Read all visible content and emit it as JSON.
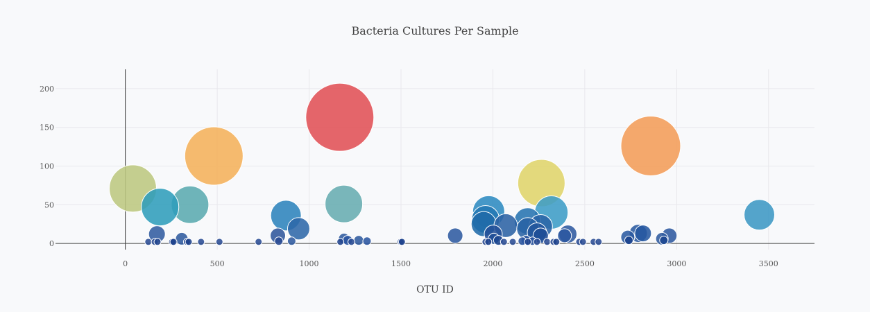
{
  "chart_data": {
    "type": "scatter",
    "title": "Bacteria Cultures Per Sample",
    "xlabel": "OTU ID",
    "ylabel": "",
    "xlim": [
      -380,
      3750
    ],
    "ylim": [
      -8,
      225
    ],
    "xticks": [
      0,
      500,
      1000,
      1500,
      2000,
      2500,
      3000,
      3500
    ],
    "yticks": [
      0,
      50,
      100,
      150,
      200
    ],
    "grid": true,
    "points": [
      {
        "x": 1167,
        "y": 163,
        "r": 49,
        "color": "#e05055"
      },
      {
        "x": 482,
        "y": 113,
        "r": 42,
        "color": "#f4b05a"
      },
      {
        "x": 2859,
        "y": 126,
        "r": 43,
        "color": "#f29c58"
      },
      {
        "x": 2264,
        "y": 78,
        "r": 34,
        "color": "#dfd46a"
      },
      {
        "x": 41,
        "y": 71,
        "r": 34,
        "color": "#bcc77f"
      },
      {
        "x": 352,
        "y": 50,
        "r": 27,
        "color": "#5aaaaf"
      },
      {
        "x": 1189,
        "y": 51,
        "r": 27,
        "color": "#67acb0"
      },
      {
        "x": 189,
        "y": 47,
        "r": 27,
        "color": "#2f9dbb"
      },
      {
        "x": 2318,
        "y": 40,
        "r": 24,
        "color": "#3c9cc6"
      },
      {
        "x": 3450,
        "y": 37,
        "r": 22,
        "color": "#3c97c4"
      },
      {
        "x": 874,
        "y": 36,
        "r": 22,
        "color": "#2c83bc"
      },
      {
        "x": 1977,
        "y": 41,
        "r": 23,
        "color": "#2c8ac0"
      },
      {
        "x": 1960,
        "y": 31,
        "r": 20,
        "color": "#2477b3"
      },
      {
        "x": 2188,
        "y": 29,
        "r": 19,
        "color": "#2673b0"
      },
      {
        "x": 1950,
        "y": 25,
        "r": 18,
        "color": "#1f6aa9"
      },
      {
        "x": 2070,
        "y": 23,
        "r": 17,
        "color": "#2b62a4"
      },
      {
        "x": 2260,
        "y": 22,
        "r": 17,
        "color": "#2a64a6"
      },
      {
        "x": 943,
        "y": 19,
        "r": 16,
        "color": "#2d68a8"
      },
      {
        "x": 2190,
        "y": 19,
        "r": 16,
        "color": "#2862a4"
      },
      {
        "x": 2240,
        "y": 14,
        "r": 14,
        "color": "#23569c"
      },
      {
        "x": 2408,
        "y": 12,
        "r": 13,
        "color": "#2e599f"
      },
      {
        "x": 2002,
        "y": 12,
        "r": 13,
        "color": "#245198"
      },
      {
        "x": 2791,
        "y": 13,
        "r": 13,
        "color": "#2a5aa0"
      },
      {
        "x": 2817,
        "y": 13,
        "r": 12,
        "color": "#2558a0"
      },
      {
        "x": 172,
        "y": 12,
        "r": 12,
        "color": "#315ca0"
      },
      {
        "x": 2960,
        "y": 10,
        "r": 11,
        "color": "#2e599f"
      },
      {
        "x": 1795,
        "y": 10,
        "r": 11,
        "color": "#2d5aa0"
      },
      {
        "x": 830,
        "y": 10,
        "r": 11,
        "color": "#2f579c"
      },
      {
        "x": 2260,
        "y": 10,
        "r": 11,
        "color": "#1f4d96"
      },
      {
        "x": 2390,
        "y": 10,
        "r": 10,
        "color": "#2c58a0"
      },
      {
        "x": 2734,
        "y": 8,
        "r": 10,
        "color": "#2b5aa0"
      },
      {
        "x": 2920,
        "y": 6,
        "r": 9,
        "color": "#2f5a9e"
      },
      {
        "x": 307,
        "y": 6,
        "r": 9,
        "color": "#2f5a9e"
      },
      {
        "x": 2005,
        "y": 6,
        "r": 8,
        "color": "#1f4d96"
      },
      {
        "x": 1190,
        "y": 6,
        "r": 8,
        "color": "#2f5a9e"
      },
      {
        "x": 1270,
        "y": 4,
        "r": 7,
        "color": "#2f5a9e"
      },
      {
        "x": 1210,
        "y": 4,
        "r": 7,
        "color": "#2a55a0"
      },
      {
        "x": 2030,
        "y": 4,
        "r": 7,
        "color": "#1d478f"
      },
      {
        "x": 2180,
        "y": 4,
        "r": 7,
        "color": "#24509a"
      },
      {
        "x": 2930,
        "y": 4,
        "r": 6,
        "color": "#1d478f"
      },
      {
        "x": 2740,
        "y": 4,
        "r": 6,
        "color": "#1a428c"
      },
      {
        "x": 835,
        "y": 3,
        "r": 6,
        "color": "#2a4c94"
      },
      {
        "x": 905,
        "y": 3,
        "r": 6,
        "color": "#2f5a9e"
      },
      {
        "x": 1315,
        "y": 3,
        "r": 6,
        "color": "#2a55a0"
      },
      {
        "x": 2160,
        "y": 3,
        "r": 6,
        "color": "#2a55a0"
      },
      {
        "x": 2215,
        "y": 3,
        "r": 6,
        "color": "#2a55a0"
      },
      {
        "x": 125,
        "y": 2,
        "r": 5,
        "color": "#2a4c94"
      },
      {
        "x": 160,
        "y": 2,
        "r": 5,
        "color": "#2a4c94"
      },
      {
        "x": 175,
        "y": 2,
        "r": 5,
        "color": "#23478f"
      },
      {
        "x": 255,
        "y": 2,
        "r": 5,
        "color": "#23478f"
      },
      {
        "x": 262,
        "y": 2,
        "r": 5,
        "color": "#1e428c"
      },
      {
        "x": 335,
        "y": 2,
        "r": 5,
        "color": "#23478f"
      },
      {
        "x": 345,
        "y": 2,
        "r": 5,
        "color": "#1e428c"
      },
      {
        "x": 412,
        "y": 2,
        "r": 5,
        "color": "#2a4c94"
      },
      {
        "x": 512,
        "y": 2,
        "r": 5,
        "color": "#2a4c94"
      },
      {
        "x": 725,
        "y": 2,
        "r": 5,
        "color": "#2a4c94"
      },
      {
        "x": 1170,
        "y": 2,
        "r": 5,
        "color": "#23478f"
      },
      {
        "x": 1230,
        "y": 2,
        "r": 5,
        "color": "#2a4c94"
      },
      {
        "x": 1498,
        "y": 2,
        "r": 5,
        "color": "#1e428c"
      },
      {
        "x": 1505,
        "y": 2,
        "r": 5,
        "color": "#1e428c"
      },
      {
        "x": 1960,
        "y": 2,
        "r": 5,
        "color": "#2a4c94"
      },
      {
        "x": 1975,
        "y": 2,
        "r": 5,
        "color": "#1e428c"
      },
      {
        "x": 2060,
        "y": 2,
        "r": 5,
        "color": "#2a4c94"
      },
      {
        "x": 2108,
        "y": 2,
        "r": 5,
        "color": "#2a4c94"
      },
      {
        "x": 2190,
        "y": 2,
        "r": 5,
        "color": "#1e428c"
      },
      {
        "x": 2240,
        "y": 2,
        "r": 5,
        "color": "#2a4c94"
      },
      {
        "x": 2295,
        "y": 2,
        "r": 5,
        "color": "#2a4c94"
      },
      {
        "x": 2330,
        "y": 2,
        "r": 5,
        "color": "#2a4c94"
      },
      {
        "x": 2345,
        "y": 2,
        "r": 5,
        "color": "#1e428c"
      },
      {
        "x": 2470,
        "y": 2,
        "r": 5,
        "color": "#2a4c94"
      },
      {
        "x": 2490,
        "y": 2,
        "r": 5,
        "color": "#2a4c94"
      },
      {
        "x": 2548,
        "y": 2,
        "r": 5,
        "color": "#2a4c94"
      },
      {
        "x": 2575,
        "y": 2,
        "r": 5,
        "color": "#2a4c94"
      }
    ]
  }
}
